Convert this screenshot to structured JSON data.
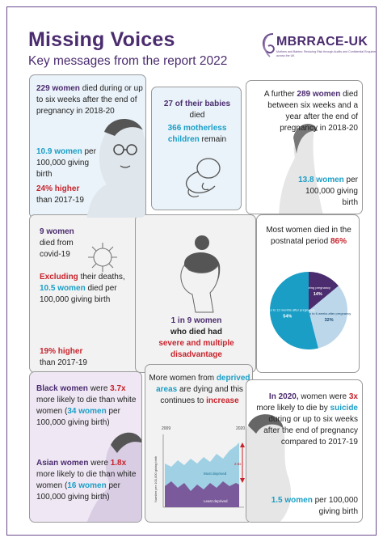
{
  "header": {
    "title": "Missing Voices",
    "subtitle": "Key messages from the report 2022"
  },
  "logo": {
    "name": "MBRRACE-UK",
    "tagline": "Mothers and Babies: Reducing Risk through Audits and Confidential Enquiries across the UK"
  },
  "card1": {
    "count": "229 women",
    "line1": " died during or up to six weeks after the end of pregnancy in 2018-20",
    "rate": "10.9 women",
    "rate_text": " per 100,000 giving birth",
    "change": "24% higher",
    "change_text": " than 2017-19"
  },
  "card2": {
    "babies": "27 of their babies",
    "died": "died",
    "children": "366 motherless children",
    "remain": " remain"
  },
  "card3": {
    "prefix": "A further ",
    "count": "289 women",
    "line1": " died between six weeks and a year after the end of pregnancy in 2018-20",
    "rate": "13.8 women",
    "rate_text": " per 100,000 giving birth"
  },
  "card4": {
    "count": "9 women",
    "line1": " died from covid-19",
    "excl": "Excluding",
    "excl_text": " their deaths, ",
    "rate": "10.5 women",
    "rate_text": " died per 100,000 giving birth",
    "change": "19% higher",
    "change_text": " than 2017-19"
  },
  "card5": {
    "ratio": "1 in 9 women",
    "line1": " who died had",
    "disadv": "severe and multiple disadvantage"
  },
  "card6": {
    "text": "Most women died in the postnatal period ",
    "pct": "86%",
    "slices": [
      {
        "label": "During pregnancy",
        "value": "14%",
        "value_num": 14,
        "color": "#4b2c6f"
      },
      {
        "label": "Up to 6 weeks after pregnancy",
        "value": "32%",
        "value_num": 32,
        "color": "#bcd6ea"
      },
      {
        "label": "6 weeks to 12 months after pregnancy",
        "value": "54%",
        "value_num": 54,
        "color": "#1a9ec6"
      }
    ]
  },
  "card7": {
    "group1": "Black women",
    "t1": " were ",
    "ratio1": "3.7x",
    "t2": " more likely to die than white women (",
    "rate1": "34 women",
    "t3": " per 100,000 giving birth)",
    "group2": "Asian women",
    "t4": " were ",
    "ratio2": "1.8x",
    "t5": " more likely to die than white women (",
    "rate2": "16 women",
    "t6": " per 100,000 giving birth)"
  },
  "card8": {
    "t1": "More women from ",
    "areas": "deprived areas",
    "t2": " are dying and this continues to ",
    "increase": "increase",
    "chart_y_label": "Number per 100,000 giving birth",
    "year_start": "2009",
    "year_end": "2020",
    "most_label": "Most deprived",
    "least_label": "Least deprived",
    "gap_label": "2.5x"
  },
  "card9": {
    "year": "In 2020,",
    "t1": " women were ",
    "ratio": "3x",
    "t2": " more likely to die by ",
    "suicide": "suicide",
    "t3": " during or up to six weeks after the end of pregnancy compared to 2017-19",
    "rate": "1.5 women",
    "rate_text": " per 100,000 giving birth"
  }
}
